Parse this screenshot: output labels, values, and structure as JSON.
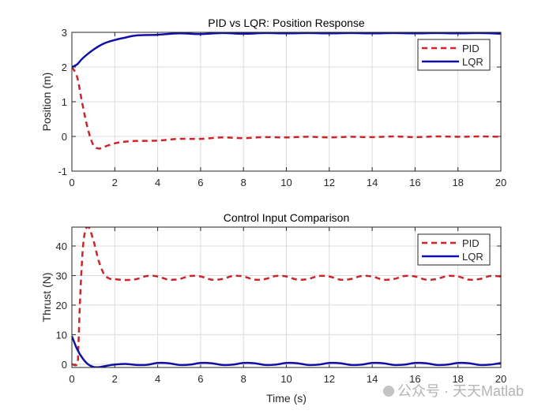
{
  "chart_data": [
    {
      "type": "line",
      "title": "PID vs LQR: Position Response",
      "xlabel": "",
      "ylabel": "Position (m)",
      "xlim": [
        0,
        20
      ],
      "ylim": [
        -1,
        3
      ],
      "xticks": [
        0,
        2,
        4,
        6,
        8,
        10,
        12,
        14,
        16,
        18,
        20
      ],
      "yticks": [
        -1,
        0,
        1,
        2,
        3
      ],
      "grid": true,
      "legend_position": "top-right",
      "series": [
        {
          "name": "PID",
          "color": "#c8262b",
          "style": "dashed",
          "x": [
            0,
            0.25,
            0.5,
            0.75,
            1,
            1.25,
            1.5,
            2,
            2.5,
            3,
            4,
            5,
            6,
            7,
            8,
            9,
            10,
            11,
            12,
            13,
            14,
            15,
            16,
            17,
            18,
            19,
            20
          ],
          "y": [
            2,
            1.7,
            0.9,
            0.2,
            -0.25,
            -0.35,
            -0.3,
            -0.2,
            -0.15,
            -0.13,
            -0.12,
            -0.07,
            -0.07,
            -0.03,
            -0.05,
            -0.02,
            -0.03,
            -0.01,
            -0.03,
            -0.01,
            -0.02,
            0,
            -0.02,
            0,
            -0.01,
            0,
            -0.01
          ]
        },
        {
          "name": "LQR",
          "color": "#1010a8",
          "style": "solid",
          "x": [
            0,
            0.25,
            0.5,
            1,
            1.5,
            2,
            2.5,
            3,
            4,
            5,
            6,
            7,
            8,
            9,
            10,
            11,
            12,
            13,
            14,
            15,
            16,
            17,
            18,
            19,
            20
          ],
          "y": [
            2,
            2.08,
            2.25,
            2.5,
            2.68,
            2.78,
            2.85,
            2.91,
            2.93,
            2.97,
            2.95,
            2.98,
            2.96,
            2.98,
            2.97,
            2.98,
            2.97,
            2.98,
            2.97,
            2.98,
            2.97,
            2.98,
            2.97,
            2.98,
            2.96
          ]
        }
      ]
    },
    {
      "type": "line",
      "title": "Control Input Comparison",
      "xlabel": "Time (s)",
      "ylabel": "Thrust (N)",
      "xlim": [
        0,
        20
      ],
      "ylim": [
        -1.1,
        46.4
      ],
      "xticks": [
        0,
        2,
        4,
        6,
        8,
        10,
        12,
        14,
        16,
        18,
        20
      ],
      "yticks": [
        0,
        10,
        20,
        30,
        40
      ],
      "grid": true,
      "legend_position": "top-right",
      "series": [
        {
          "name": "PID",
          "color": "#c8262b",
          "style": "dashed",
          "x": [
            0,
            0.25,
            0.3,
            0.4,
            0.55,
            0.75,
            1,
            1.25,
            1.5,
            1.75,
            2,
            2.5,
            3,
            3.5,
            4,
            4.5,
            5,
            5.5,
            6,
            6.5,
            7,
            7.5,
            8,
            8.5,
            9,
            9.5,
            10,
            10.5,
            11,
            11.5,
            12,
            12.5,
            13,
            13.5,
            14,
            14.5,
            15,
            15.5,
            16,
            16.5,
            17,
            17.5,
            18,
            18.5,
            19,
            19.5,
            20
          ],
          "y": [
            0,
            0,
            5,
            25,
            42,
            46.5,
            42,
            35,
            30.5,
            29,
            28.8,
            28.5,
            28.8,
            29.86,
            29.7,
            28.64,
            28.81,
            29.86,
            29.7,
            28.64,
            28.81,
            29.86,
            29.7,
            28.64,
            28.81,
            29.86,
            29.7,
            28.64,
            28.81,
            29.86,
            29.7,
            28.64,
            28.81,
            29.86,
            29.7,
            28.64,
            28.81,
            29.86,
            29.7,
            28.64,
            28.81,
            29.86,
            29.7,
            28.64,
            28.81,
            29.86,
            29.7
          ]
        },
        {
          "name": "LQR",
          "color": "#1010a8",
          "style": "solid",
          "x": [
            0,
            0.25,
            0.5,
            0.75,
            1,
            1.25,
            1.5,
            2,
            2.5,
            3,
            3.5,
            4,
            4.5,
            5,
            5.5,
            6,
            6.5,
            7,
            7.5,
            8,
            8.5,
            9,
            9.5,
            10,
            10.5,
            11,
            11.5,
            12,
            12.5,
            13,
            13.5,
            14,
            14.5,
            15,
            15.5,
            16,
            16.5,
            17,
            17.5,
            18,
            18.5,
            19,
            19.5,
            20
          ],
          "y": [
            9.5,
            5,
            2,
            0,
            -0.9,
            -1,
            -0.7,
            -0.1,
            0.1,
            -0.25,
            -0.2,
            0.42,
            0.33,
            -0.22,
            -0.14,
            0.42,
            0.33,
            -0.22,
            -0.14,
            0.42,
            0.33,
            -0.22,
            -0.14,
            0.42,
            0.33,
            -0.22,
            -0.14,
            0.42,
            0.33,
            -0.22,
            -0.14,
            0.42,
            0.33,
            -0.22,
            -0.14,
            0.42,
            0.33,
            -0.22,
            -0.14,
            0.42,
            0.33,
            -0.22,
            -0.14,
            0.42
          ]
        }
      ]
    }
  ],
  "watermark": "公众号 · 天天Matlab"
}
